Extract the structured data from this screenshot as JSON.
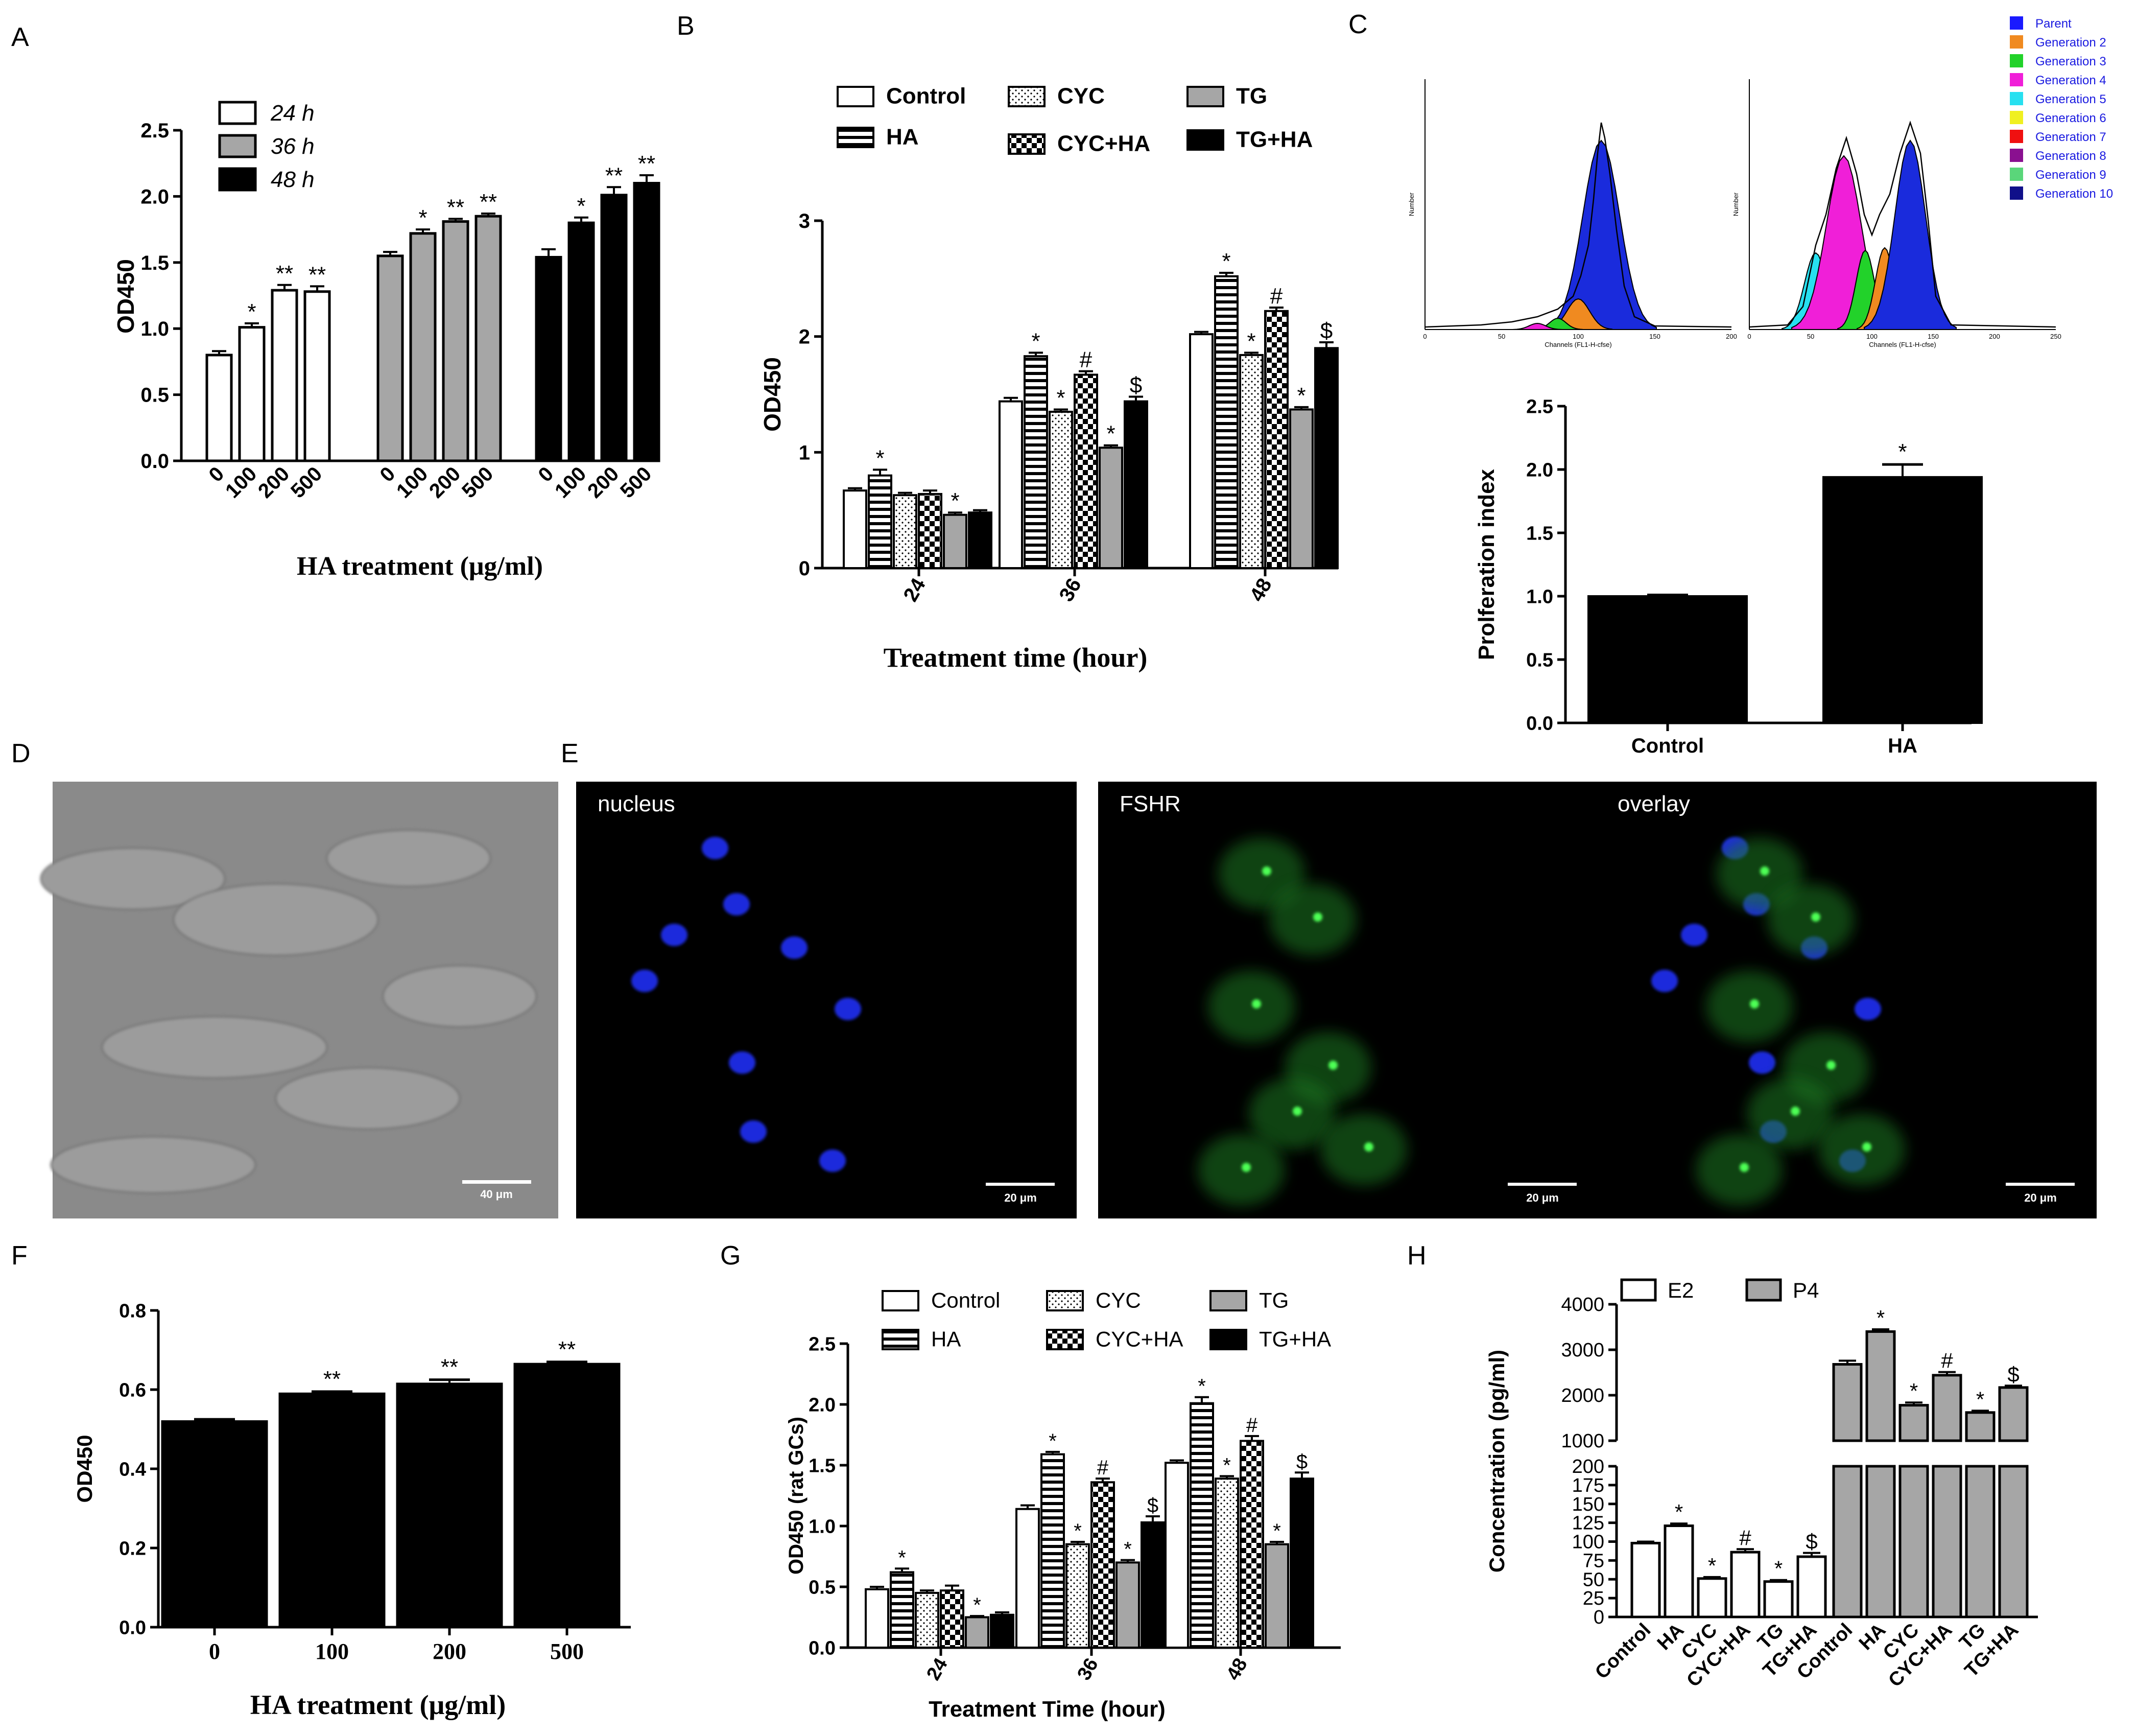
{
  "panel_letters": {
    "A": "A",
    "B": "B",
    "C": "C",
    "D": "D",
    "E": "E",
    "F": "F",
    "G": "G",
    "H": "H"
  },
  "colors": {
    "white": "#ffffff",
    "gray": "#a6a6a6",
    "black": "#000000",
    "blue": "#1a2bdc",
    "cyan": "#27e0f0",
    "magenta": "#f01fd8",
    "green": "#22d22a",
    "orange": "#f08a20"
  },
  "flow_legend": [
    {
      "label": "Parent",
      "color": "#1a1aff"
    },
    {
      "label": "Generation 2",
      "color": "#f08a20"
    },
    {
      "label": "Generation 3",
      "color": "#22d22a"
    },
    {
      "label": "Generation 4",
      "color": "#f01fd8"
    },
    {
      "label": "Generation 5",
      "color": "#27e0f0"
    },
    {
      "label": "Generation 6",
      "color": "#f0f020"
    },
    {
      "label": "Generation 7",
      "color": "#f01010"
    },
    {
      "label": "Generation 8",
      "color": "#8a1090"
    },
    {
      "label": "Generation 9",
      "color": "#5ad67a"
    },
    {
      "label": "Generation 10",
      "color": "#10108a"
    }
  ],
  "flow_plots": [
    {
      "name": "control",
      "xlabel": "Channels (FL1-H-cfse)",
      "ylabel": "Number",
      "xticks": [
        "0",
        "50",
        "100",
        "150",
        "200"
      ]
    },
    {
      "name": "ha",
      "xlabel": "Channels (FL1-H-cfse)",
      "ylabel": "Number",
      "xticks": [
        "0",
        "50",
        "100",
        "150",
        "200",
        "250"
      ]
    }
  ],
  "micrographs": [
    {
      "name": "brightfield",
      "scale": "40 μm"
    },
    {
      "name": "nucleus",
      "label": "nucleus",
      "scale": "20 μm"
    },
    {
      "name": "fshr",
      "label": "FSHR",
      "scale": "20 μm"
    },
    {
      "name": "overlay",
      "label": "overlay",
      "scale": "20 μm"
    }
  ],
  "chart_data": [
    {
      "panel": "A",
      "type": "bar",
      "ylabel": "OD450",
      "xlabel": "HA treatment (μg/ml)",
      "ylim": [
        0,
        2.5
      ],
      "yticks": [
        "0.0",
        "0.5",
        "1.0",
        "1.5",
        "2.0",
        "2.5"
      ],
      "categories": [
        "0",
        "100",
        "200",
        "500"
      ],
      "series": [
        {
          "name": "24 h",
          "color": "#ffffff",
          "values": [
            0.8,
            1.01,
            1.29,
            1.28
          ],
          "err": [
            0.03,
            0.03,
            0.04,
            0.04
          ],
          "marks": [
            "",
            "*",
            "**",
            "**"
          ]
        },
        {
          "name": "36 h",
          "color": "#a6a6a6",
          "values": [
            1.55,
            1.72,
            1.81,
            1.85
          ],
          "err": [
            0.03,
            0.03,
            0.02,
            0.02
          ],
          "marks": [
            "",
            "*",
            "**",
            "**"
          ]
        },
        {
          "name": "48 h",
          "color": "#000000",
          "values": [
            1.54,
            1.8,
            2.01,
            2.1
          ],
          "err": [
            0.06,
            0.04,
            0.06,
            0.06
          ],
          "marks": [
            "",
            "*",
            "**",
            "**"
          ]
        }
      ]
    },
    {
      "panel": "B",
      "type": "bar",
      "ylabel": "OD450",
      "xlabel": "Treatment time (hour)",
      "ylim": [
        0,
        3
      ],
      "yticks": [
        "0",
        "1",
        "2",
        "3"
      ],
      "categories": [
        "24",
        "36",
        "48"
      ],
      "series": [
        {
          "name": "Control",
          "pattern": "white",
          "values": [
            0.67,
            1.44,
            2.02
          ],
          "err": [
            0.02,
            0.03,
            0.02
          ],
          "marks": [
            "",
            "",
            ""
          ]
        },
        {
          "name": "HA",
          "pattern": "hstripe",
          "values": [
            0.8,
            1.83,
            2.52
          ],
          "err": [
            0.05,
            0.03,
            0.03
          ],
          "marks": [
            "*",
            "*",
            "*"
          ]
        },
        {
          "name": "CYC",
          "pattern": "dots",
          "values": [
            0.63,
            1.35,
            1.84
          ],
          "err": [
            0.02,
            0.02,
            0.02
          ],
          "marks": [
            "",
            "*",
            "*"
          ]
        },
        {
          "name": "CYC+HA",
          "pattern": "checker",
          "values": [
            0.64,
            1.67,
            2.22
          ],
          "err": [
            0.03,
            0.03,
            0.03
          ],
          "marks": [
            "",
            "#",
            "#"
          ]
        },
        {
          "name": "TG",
          "pattern": "gray",
          "values": [
            0.46,
            1.04,
            1.37
          ],
          "err": [
            0.02,
            0.02,
            0.02
          ],
          "marks": [
            "*",
            "*",
            "*"
          ]
        },
        {
          "name": "TG+HA",
          "pattern": "black",
          "values": [
            0.48,
            1.44,
            1.9
          ],
          "err": [
            0.02,
            0.04,
            0.05
          ],
          "marks": [
            "",
            "$",
            "$"
          ]
        }
      ]
    },
    {
      "panel": "C",
      "type": "bar",
      "ylabel": "Prolferation index",
      "xlabel": "",
      "ylim": [
        0,
        2.5
      ],
      "yticks": [
        "0.0",
        "0.5",
        "1.0",
        "1.5",
        "2.0",
        "2.5"
      ],
      "categories": [
        "Control",
        "HA"
      ],
      "values": [
        1.0,
        1.94
      ],
      "err": [
        0.01,
        0.1
      ],
      "marks": [
        "",
        "*"
      ]
    },
    {
      "panel": "F",
      "type": "bar",
      "ylabel": "OD450",
      "xlabel": "HA treatment (μg/ml)",
      "ylim": [
        0,
        0.8
      ],
      "yticks": [
        "0.0",
        "0.2",
        "0.4",
        "0.6",
        "0.8"
      ],
      "categories": [
        "0",
        "100",
        "200",
        "500"
      ],
      "values": [
        0.52,
        0.59,
        0.615,
        0.665
      ],
      "err": [
        0.005,
        0.005,
        0.01,
        0.005
      ],
      "marks": [
        "",
        "**",
        "**",
        "**"
      ]
    },
    {
      "panel": "G",
      "type": "bar",
      "ylabel": "OD450 (rat GCs)",
      "xlabel": "Treatment Time  (hour)",
      "ylim": [
        0,
        2.5
      ],
      "yticks": [
        "0.0",
        "0.5",
        "1.0",
        "1.5",
        "2.0",
        "2.5"
      ],
      "categories": [
        "24",
        "36",
        "48"
      ],
      "series": [
        {
          "name": "Control",
          "pattern": "white",
          "values": [
            0.48,
            1.14,
            1.52
          ],
          "err": [
            0.02,
            0.03,
            0.02
          ],
          "marks": [
            "",
            "",
            ""
          ]
        },
        {
          "name": "HA",
          "pattern": "hstripe",
          "values": [
            0.62,
            1.59,
            2.01
          ],
          "err": [
            0.03,
            0.02,
            0.05
          ],
          "marks": [
            "*",
            "*",
            "*"
          ]
        },
        {
          "name": "CYC",
          "pattern": "dots",
          "values": [
            0.45,
            0.85,
            1.39
          ],
          "err": [
            0.02,
            0.02,
            0.02
          ],
          "marks": [
            "",
            "*",
            "*"
          ]
        },
        {
          "name": "CYC+HA",
          "pattern": "checker",
          "values": [
            0.47,
            1.36,
            1.7
          ],
          "err": [
            0.04,
            0.03,
            0.04
          ],
          "marks": [
            "",
            "#",
            "#"
          ]
        },
        {
          "name": "TG",
          "pattern": "gray",
          "values": [
            0.25,
            0.7,
            0.85
          ],
          "err": [
            0.01,
            0.02,
            0.02
          ],
          "marks": [
            "*",
            "*",
            "*"
          ]
        },
        {
          "name": "TG+HA",
          "pattern": "black",
          "values": [
            0.27,
            1.03,
            1.39
          ],
          "err": [
            0.02,
            0.05,
            0.05
          ],
          "marks": [
            "",
            "$",
            "$"
          ]
        }
      ]
    },
    {
      "panel": "H",
      "type": "bar",
      "ylabel": "Concentration (pg/ml)",
      "xlabel": "",
      "axis_break": {
        "lower": [
          0,
          200
        ],
        "upper": [
          1000,
          4000
        ]
      },
      "lower_ticks": [
        "0",
        "25",
        "50",
        "75",
        "100",
        "125",
        "150",
        "175",
        "200"
      ],
      "upper_ticks": [
        "1000",
        "2000",
        "3000",
        "4000"
      ],
      "categories": [
        "Control",
        "HA",
        "CYC",
        "CYC+HA",
        "TG",
        "TG+HA"
      ],
      "series": [
        {
          "name": "E2",
          "color": "#ffffff",
          "values": [
            98,
            121,
            51,
            86,
            47,
            80
          ],
          "err": [
            2,
            3,
            2,
            4,
            2,
            5
          ],
          "marks": [
            "",
            "*",
            "*",
            "#",
            "*",
            "$"
          ]
        },
        {
          "name": "P4",
          "color": "#a6a6a6",
          "values": [
            2680,
            3400,
            1780,
            2440,
            1620,
            2170
          ],
          "err": [
            80,
            50,
            60,
            70,
            40,
            40
          ],
          "marks": [
            "",
            "*",
            "*",
            "#",
            "*",
            "$"
          ]
        }
      ]
    }
  ]
}
